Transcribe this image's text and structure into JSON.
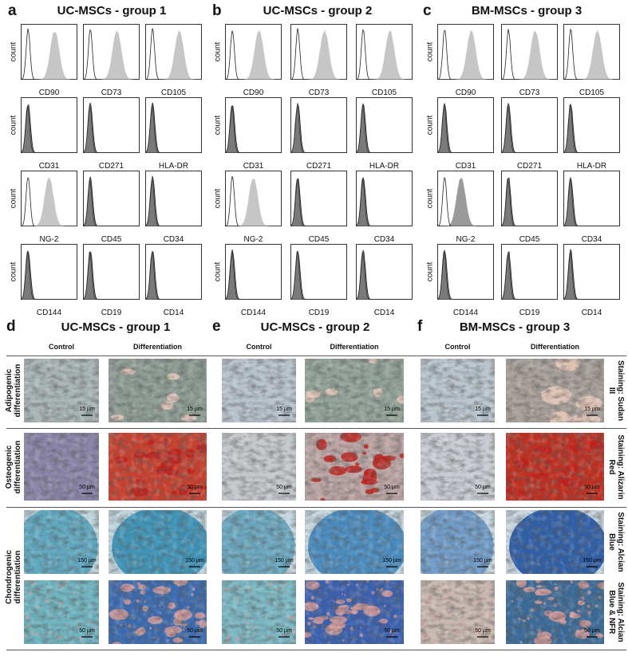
{
  "flow_panels": [
    {
      "letter": "a",
      "title": "UC-MSCs - group 1",
      "y_label": "count",
      "markers": [
        [
          "CD90",
          "CD73",
          "CD105"
        ],
        [
          "CD31",
          "CD271",
          "HLA-DR"
        ],
        [
          "NG-2",
          "CD45",
          "CD34"
        ],
        [
          "CD144",
          "CD19",
          "CD14"
        ]
      ]
    },
    {
      "letter": "b",
      "title": "UC-MSCs - group 2",
      "y_label": "count",
      "markers": [
        [
          "CD90",
          "CD73",
          "CD105"
        ],
        [
          "CD31",
          "CD271",
          "HLA-DR"
        ],
        [
          "NG-2",
          "CD45",
          "CD34"
        ],
        [
          "CD144",
          "CD19",
          "CD14"
        ]
      ]
    },
    {
      "letter": "c",
      "title": "BM-MSCs - group 3",
      "y_label": "count",
      "markers": [
        [
          "CD90",
          "CD73",
          "CD105"
        ],
        [
          "CD31",
          "CD271",
          "HLA-DR"
        ],
        [
          "NG-2",
          "CD45",
          "CD34"
        ],
        [
          "CD144",
          "CD19",
          "CD14"
        ]
      ]
    }
  ],
  "micro_panels": [
    {
      "letter": "d",
      "title": "UC-MSCs - group 1",
      "columns": [
        "Control",
        "Differentiation"
      ]
    },
    {
      "letter": "e",
      "title": "UC-MSCs - group 2",
      "columns": [
        "Control",
        "Differentiation"
      ]
    },
    {
      "letter": "f",
      "title": "BM-MSCs - group 3",
      "columns": [
        "Control",
        "Differentiation"
      ]
    }
  ],
  "sections": [
    {
      "label": "Adipogenic differentiation",
      "rows": [
        {
          "staining": "Staining: Sudan III",
          "scale_bar": "15 µm"
        }
      ]
    },
    {
      "label": "Osteogenic differentiation",
      "rows": [
        {
          "staining": "Staining: Alizarin Red",
          "scale_bar": "50 µm"
        }
      ]
    },
    {
      "label": "Chondrogenic differentiation",
      "rows": [
        {
          "staining": "Staining: Alcian Blue",
          "scale_bar": "150 µm"
        },
        {
          "staining": "Staining: Alcian Blue & NFR",
          "scale_bar": "50 µm"
        }
      ]
    }
  ]
}
